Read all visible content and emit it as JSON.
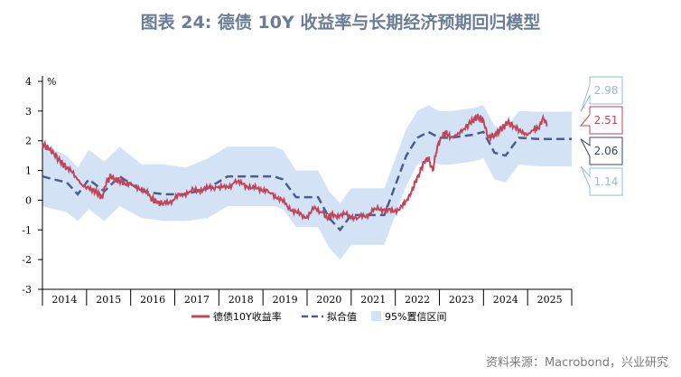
{
  "title": "图表 24: 德债 10Y 收益率与长期经济预期回归模型",
  "source": "资料来源：Macrobond，兴业研究",
  "colors": {
    "actual": "#c0455b",
    "fit": "#4a5f87",
    "band": "#d4e2f5",
    "title": "#6a7d95",
    "label_upper": "#9bbad8",
    "label_actual": "#c0455b",
    "label_fit": "#3c4460",
    "label_lower": "#9bbad8"
  },
  "chart_data": {
    "type": "line",
    "y_unit": "%",
    "ylim": [
      -3,
      4
    ],
    "yticks": [
      -3,
      -2,
      -1,
      0,
      1,
      2,
      3,
      4
    ],
    "xlim": [
      2013.75,
      2025.75
    ],
    "year_labels": [
      "2014",
      "2015",
      "2016",
      "2017",
      "2018",
      "2019",
      "2020",
      "2021",
      "2022",
      "2023",
      "2024",
      "2025"
    ],
    "legend": [
      "德债10Y收益率",
      "拟合值",
      "95%置信区间"
    ],
    "grid": false,
    "series": [
      {
        "name": "德债10Y收益率",
        "type": "line",
        "x": [
          2013.75,
          2013.9,
          2014.0,
          2014.15,
          2014.3,
          2014.5,
          2014.65,
          2014.8,
          2014.95,
          2015.1,
          2015.2,
          2015.3,
          2015.4,
          2015.5,
          2015.6,
          2015.8,
          2016.0,
          2016.2,
          2016.35,
          2016.5,
          2016.7,
          2016.9,
          2017.1,
          2017.3,
          2017.5,
          2017.7,
          2017.9,
          2018.1,
          2018.3,
          2018.5,
          2018.7,
          2018.9,
          2019.1,
          2019.3,
          2019.5,
          2019.7,
          2019.9,
          2020.1,
          2020.2,
          2020.3,
          2020.5,
          2020.7,
          2020.9,
          2021.1,
          2021.3,
          2021.5,
          2021.7,
          2021.9,
          2022.0,
          2022.1,
          2022.2,
          2022.3,
          2022.4,
          2022.5,
          2022.6,
          2022.7,
          2022.8,
          2022.9,
          2023.0,
          2023.15,
          2023.3,
          2023.45,
          2023.6,
          2023.75,
          2023.85,
          2024.0,
          2024.15,
          2024.3,
          2024.45,
          2024.6,
          2024.75,
          2024.9,
          2025.0,
          2025.1,
          2025.2
        ],
        "values": [
          1.9,
          1.7,
          1.6,
          1.3,
          1.1,
          0.8,
          0.5,
          0.4,
          0.3,
          0.1,
          0.6,
          0.8,
          0.7,
          0.65,
          0.6,
          0.5,
          0.4,
          0.1,
          -0.1,
          -0.1,
          0.0,
          0.2,
          0.3,
          0.35,
          0.4,
          0.45,
          0.4,
          0.6,
          0.55,
          0.4,
          0.4,
          0.25,
          0.1,
          -0.2,
          -0.4,
          -0.6,
          -0.3,
          -0.4,
          -0.6,
          -0.5,
          -0.5,
          -0.5,
          -0.6,
          -0.5,
          -0.3,
          -0.3,
          -0.4,
          -0.2,
          0.0,
          0.2,
          0.6,
          0.9,
          1.3,
          1.4,
          1.0,
          1.8,
          2.1,
          2.3,
          2.1,
          2.2,
          2.4,
          2.6,
          2.8,
          2.7,
          2.1,
          2.2,
          2.4,
          2.6,
          2.5,
          2.3,
          2.2,
          2.4,
          2.4,
          2.8,
          2.5
        ]
      },
      {
        "name": "拟合值",
        "type": "dashed",
        "x": [
          2013.75,
          2014.0,
          2014.3,
          2014.55,
          2014.8,
          2015.15,
          2015.5,
          2016.0,
          2016.5,
          2017.0,
          2017.5,
          2017.95,
          2018.5,
          2019.0,
          2019.2,
          2019.5,
          2020.0,
          2020.25,
          2020.5,
          2020.75,
          2021.0,
          2021.5,
          2021.75,
          2022.0,
          2022.25,
          2022.5,
          2022.75,
          2023.0,
          2023.5,
          2023.75,
          2024.0,
          2024.25,
          2024.55,
          2025.0,
          2025.75
        ],
        "values": [
          0.8,
          0.7,
          0.6,
          0.2,
          0.7,
          0.3,
          0.8,
          0.3,
          0.2,
          0.2,
          0.4,
          0.8,
          0.8,
          0.8,
          0.7,
          0.1,
          0.1,
          -0.6,
          -1.0,
          -0.5,
          -0.5,
          -0.5,
          0.5,
          1.5,
          2.1,
          2.3,
          2.1,
          2.1,
          2.2,
          2.3,
          1.6,
          1.5,
          2.1,
          2.06,
          2.06
        ]
      },
      {
        "name": "95%置信区间",
        "type": "band",
        "x": [
          2013.75,
          2014.0,
          2014.3,
          2014.55,
          2014.8,
          2015.15,
          2015.5,
          2016.0,
          2016.5,
          2017.0,
          2017.5,
          2017.95,
          2018.5,
          2019.0,
          2019.2,
          2019.5,
          2020.0,
          2020.25,
          2020.5,
          2020.75,
          2021.0,
          2021.5,
          2021.75,
          2022.0,
          2022.25,
          2022.5,
          2022.75,
          2023.0,
          2023.5,
          2023.75,
          2024.0,
          2024.25,
          2024.55,
          2025.0,
          2025.75
        ],
        "upper": [
          1.8,
          1.7,
          1.5,
          1.1,
          1.7,
          1.3,
          1.8,
          1.2,
          1.2,
          1.1,
          1.4,
          1.8,
          1.8,
          1.8,
          1.7,
          1.0,
          1.0,
          0.3,
          -0.1,
          0.4,
          0.4,
          0.4,
          1.4,
          2.4,
          3.0,
          3.2,
          3.0,
          3.0,
          3.1,
          3.2,
          2.5,
          2.4,
          3.0,
          2.98,
          2.98
        ],
        "lower": [
          -0.2,
          -0.3,
          -0.4,
          -0.7,
          -0.3,
          -0.7,
          -0.2,
          -0.6,
          -0.7,
          -0.7,
          -0.6,
          -0.2,
          -0.2,
          -0.2,
          -0.3,
          -0.9,
          -0.9,
          -1.6,
          -2.0,
          -1.5,
          -1.5,
          -1.5,
          -0.5,
          0.5,
          1.2,
          1.4,
          1.2,
          1.2,
          1.3,
          1.4,
          0.7,
          0.6,
          1.2,
          1.14,
          1.14
        ]
      }
    ],
    "end_labels": [
      {
        "text": "2.98",
        "value": 2.98,
        "style": "upper"
      },
      {
        "text": "2.51",
        "value": 2.51,
        "style": "actual"
      },
      {
        "text": "2.06",
        "value": 2.06,
        "style": "fit"
      },
      {
        "text": "1.14",
        "value": 1.14,
        "style": "lower"
      }
    ]
  }
}
